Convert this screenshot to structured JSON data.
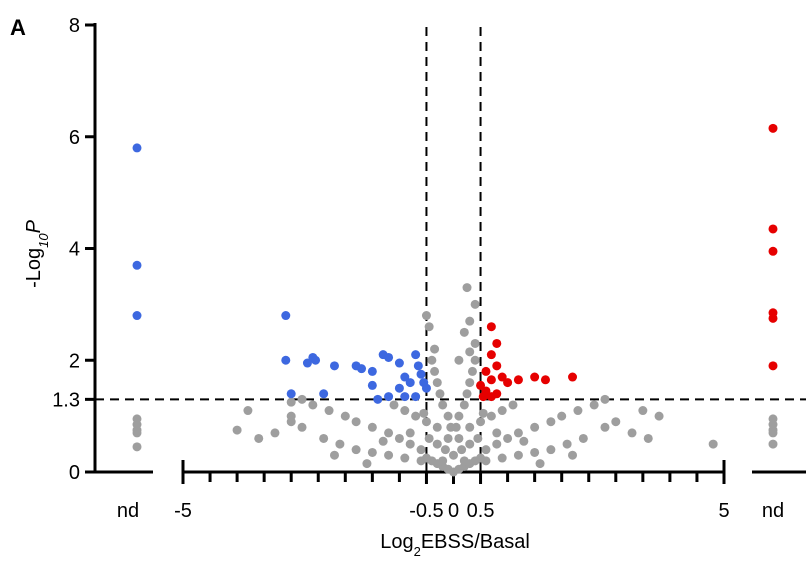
{
  "chart_data": {
    "type": "scatter",
    "panel_label": "A",
    "xlabel": {
      "prefix": "Log",
      "sub": "2",
      "rest": "EBSS/Basal"
    },
    "ylabel": {
      "prefix": "-Log",
      "sub": "10",
      "rest": "P"
    },
    "xlim": [
      -5.5,
      5.5
    ],
    "ylim": [
      0,
      8
    ],
    "x_ticks": [
      {
        "value": -5,
        "label": "-5"
      },
      {
        "value": -0.5,
        "label": "-0.5"
      },
      {
        "value": 0,
        "label": "0"
      },
      {
        "value": 0.5,
        "label": "0.5"
      },
      {
        "value": 5,
        "label": "5"
      }
    ],
    "x_minor_ticks": [
      -4.5,
      -4,
      -3.5,
      -3,
      -2.5,
      -2,
      -1.5,
      -1,
      1,
      1.5,
      2,
      2.5,
      3,
      3.5,
      4,
      4.5
    ],
    "y_ticks": [
      {
        "value": 0,
        "label": "0"
      },
      {
        "value": 1.3,
        "label": "1.3"
      },
      {
        "value": 2,
        "label": "2"
      },
      {
        "value": 4,
        "label": "4"
      },
      {
        "value": 6,
        "label": "6"
      },
      {
        "value": 8,
        "label": "8"
      }
    ],
    "nd_label": "nd",
    "reference_lines": {
      "x": [
        -0.5,
        0.5
      ],
      "y": [
        1.3
      ],
      "style": "dashed"
    },
    "colors": {
      "down": "#3d68e0",
      "up": "#e60000",
      "ns": "#9e9e9e"
    },
    "series": [
      {
        "group": "down",
        "points": [
          [
            -3.1,
            2.8
          ],
          [
            -3.1,
            2.0
          ],
          [
            -3.0,
            1.4
          ],
          [
            -2.7,
            1.95
          ],
          [
            -2.6,
            2.05
          ],
          [
            -2.55,
            2.0
          ],
          [
            -2.4,
            1.4
          ],
          [
            -2.2,
            1.9
          ],
          [
            -1.8,
            1.9
          ],
          [
            -1.7,
            1.85
          ],
          [
            -1.5,
            1.8
          ],
          [
            -1.5,
            1.55
          ],
          [
            -1.3,
            2.1
          ],
          [
            -1.2,
            2.05
          ],
          [
            -1.0,
            1.95
          ],
          [
            -0.9,
            1.7
          ],
          [
            -0.8,
            1.6
          ],
          [
            -0.7,
            2.1
          ],
          [
            -0.65,
            1.9
          ],
          [
            -0.6,
            1.75
          ],
          [
            -0.55,
            1.6
          ],
          [
            -0.5,
            1.5
          ],
          [
            -1.0,
            1.5
          ],
          [
            -0.9,
            1.35
          ],
          [
            -0.7,
            1.35
          ],
          [
            -1.2,
            1.35
          ],
          [
            -1.4,
            1.3
          ]
        ]
      },
      {
        "group": "up",
        "points": [
          [
            0.7,
            2.6
          ],
          [
            0.8,
            2.3
          ],
          [
            0.7,
            2.1
          ],
          [
            0.8,
            1.9
          ],
          [
            0.6,
            1.8
          ],
          [
            0.7,
            1.65
          ],
          [
            0.9,
            1.7
          ],
          [
            1.0,
            1.6
          ],
          [
            1.2,
            1.65
          ],
          [
            1.5,
            1.7
          ],
          [
            1.7,
            1.65
          ],
          [
            2.2,
            1.7
          ],
          [
            0.5,
            1.55
          ],
          [
            0.6,
            1.45
          ],
          [
            0.8,
            1.4
          ],
          [
            0.55,
            1.35
          ],
          [
            0.7,
            1.35
          ]
        ]
      },
      {
        "group": "ns",
        "points": [
          [
            0.0,
            0.0
          ],
          [
            0.1,
            0.05
          ],
          [
            -0.1,
            0.05
          ],
          [
            0.2,
            0.1
          ],
          [
            -0.2,
            0.1
          ],
          [
            0.3,
            0.15
          ],
          [
            -0.3,
            0.15
          ],
          [
            0.4,
            0.2
          ],
          [
            -0.4,
            0.2
          ],
          [
            0.5,
            0.25
          ],
          [
            -0.5,
            0.25
          ],
          [
            0.0,
            0.3
          ],
          [
            0.15,
            0.4
          ],
          [
            -0.15,
            0.4
          ],
          [
            0.3,
            0.5
          ],
          [
            -0.3,
            0.5
          ],
          [
            0.45,
            0.6
          ],
          [
            -0.45,
            0.6
          ],
          [
            0.6,
            0.4
          ],
          [
            -0.6,
            0.4
          ],
          [
            0.8,
            0.5
          ],
          [
            -0.8,
            0.5
          ],
          [
            1.0,
            0.6
          ],
          [
            -1.0,
            0.6
          ],
          [
            1.2,
            0.7
          ],
          [
            -1.2,
            0.7
          ],
          [
            1.5,
            0.8
          ],
          [
            -1.5,
            0.8
          ],
          [
            1.8,
            0.9
          ],
          [
            -1.8,
            0.9
          ],
          [
            2.0,
            1.0
          ],
          [
            -2.0,
            1.0
          ],
          [
            2.3,
            1.1
          ],
          [
            -2.3,
            1.1
          ],
          [
            2.6,
            1.2
          ],
          [
            -2.6,
            1.2
          ],
          [
            0.05,
            0.8
          ],
          [
            -0.05,
            0.8
          ],
          [
            0.1,
            1.0
          ],
          [
            -0.1,
            1.0
          ],
          [
            0.2,
            1.2
          ],
          [
            -0.2,
            1.2
          ],
          [
            0.25,
            1.4
          ],
          [
            -0.25,
            1.4
          ],
          [
            0.3,
            1.6
          ],
          [
            -0.3,
            1.6
          ],
          [
            0.35,
            1.8
          ],
          [
            -0.35,
            1.8
          ],
          [
            0.4,
            2.0
          ],
          [
            -0.35,
            2.2
          ],
          [
            0.2,
            2.5
          ],
          [
            0.3,
            2.7
          ],
          [
            0.4,
            3.0
          ],
          [
            0.25,
            3.3
          ],
          [
            0.4,
            2.3
          ],
          [
            0.3,
            2.15
          ],
          [
            0.1,
            2.0
          ],
          [
            -0.4,
            2.0
          ],
          [
            -0.45,
            2.6
          ],
          [
            -0.5,
            2.8
          ],
          [
            0.3,
            0.8
          ],
          [
            -0.3,
            0.8
          ],
          [
            0.5,
            0.9
          ],
          [
            -0.5,
            0.9
          ],
          [
            0.7,
            1.0
          ],
          [
            -0.7,
            1.0
          ],
          [
            0.9,
            1.1
          ],
          [
            -0.9,
            1.1
          ],
          [
            1.1,
            1.2
          ],
          [
            -1.1,
            1.2
          ],
          [
            0.6,
            0.2
          ],
          [
            -0.6,
            0.2
          ],
          [
            0.9,
            0.25
          ],
          [
            -0.9,
            0.25
          ],
          [
            1.2,
            0.3
          ],
          [
            -1.2,
            0.3
          ],
          [
            1.5,
            0.35
          ],
          [
            -1.5,
            0.35
          ],
          [
            1.8,
            0.4
          ],
          [
            -1.8,
            0.4
          ],
          [
            2.1,
            0.5
          ],
          [
            -2.1,
            0.5
          ],
          [
            2.4,
            0.6
          ],
          [
            -2.4,
            0.6
          ],
          [
            2.8,
            0.8
          ],
          [
            -2.8,
            0.8
          ],
          [
            3.0,
            0.9
          ],
          [
            -3.0,
            0.9
          ],
          [
            3.3,
            0.7
          ],
          [
            -3.3,
            0.7
          ],
          [
            3.6,
            0.6
          ],
          [
            -3.6,
            0.6
          ],
          [
            4.8,
            0.5
          ],
          [
            -4.0,
            0.75
          ],
          [
            -3.0,
            1.0
          ],
          [
            3.8,
            1.0
          ],
          [
            3.5,
            1.1
          ],
          [
            -3.8,
            1.1
          ],
          [
            2.8,
            1.3
          ],
          [
            -2.8,
            1.3
          ],
          [
            -3.0,
            1.25
          ],
          [
            2.2,
            0.3
          ],
          [
            -2.2,
            0.3
          ],
          [
            1.6,
            0.15
          ],
          [
            -1.6,
            0.15
          ],
          [
            1.3,
            0.55
          ],
          [
            -1.3,
            0.55
          ],
          [
            0.8,
            0.7
          ],
          [
            -0.8,
            0.7
          ],
          [
            0.55,
            1.05
          ],
          [
            -0.55,
            1.05
          ],
          [
            0.1,
            0.6
          ],
          [
            -0.1,
            0.6
          ],
          [
            0.2,
            0.2
          ],
          [
            -0.2,
            0.2
          ]
        ]
      }
    ],
    "nd_points": {
      "left": [
        {
          "y": 5.8,
          "group": "down"
        },
        {
          "y": 3.7,
          "group": "down"
        },
        {
          "y": 2.8,
          "group": "down"
        },
        {
          "y": 0.95,
          "group": "ns"
        },
        {
          "y": 0.85,
          "group": "ns"
        },
        {
          "y": 0.75,
          "group": "ns"
        },
        {
          "y": 0.7,
          "group": "ns"
        },
        {
          "y": 0.45,
          "group": "ns"
        }
      ],
      "right": [
        {
          "y": 6.15,
          "group": "up"
        },
        {
          "y": 4.35,
          "group": "up"
        },
        {
          "y": 3.95,
          "group": "up"
        },
        {
          "y": 2.85,
          "group": "up"
        },
        {
          "y": 2.75,
          "group": "up"
        },
        {
          "y": 1.9,
          "group": "up"
        },
        {
          "y": 0.95,
          "group": "ns"
        },
        {
          "y": 0.85,
          "group": "ns"
        },
        {
          "y": 0.75,
          "group": "ns"
        },
        {
          "y": 0.7,
          "group": "ns"
        },
        {
          "y": 0.5,
          "group": "ns"
        }
      ]
    }
  }
}
